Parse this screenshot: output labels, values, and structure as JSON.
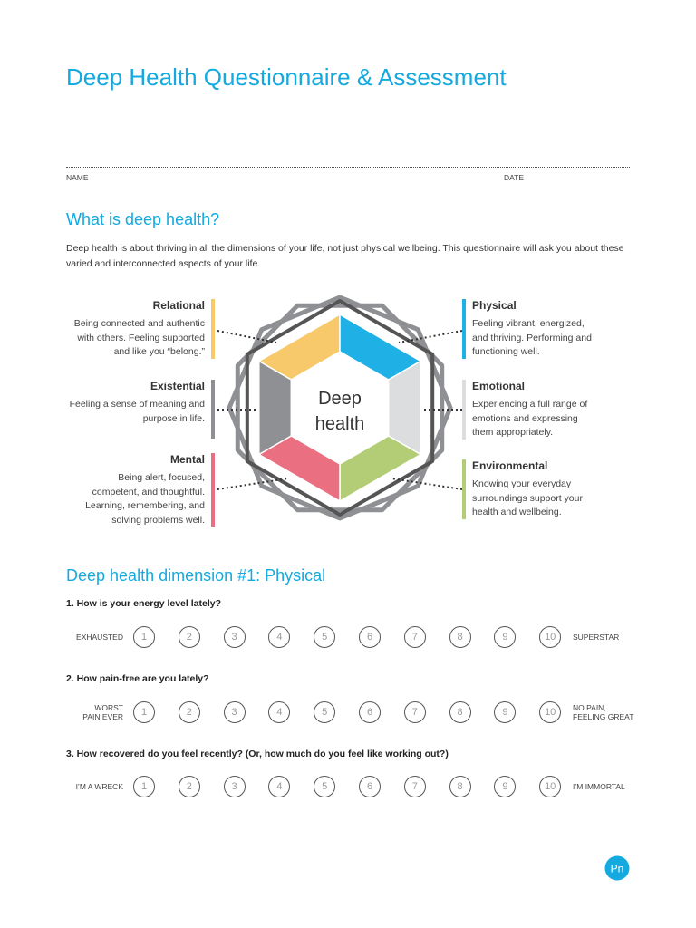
{
  "header": {
    "title": "Deep Health Questionnaire & Assessment"
  },
  "fields": {
    "name": "NAME",
    "date": "DATE"
  },
  "intro": {
    "heading": "What is deep health?",
    "text": "Deep health is about thriving in all the dimensions of your life, not just physical wellbeing. This questionnaire will ask you about these varied and interconnected aspects of your life."
  },
  "diagram": {
    "center": [
      "Deep",
      "health"
    ],
    "dimensions": [
      {
        "title": "Relational",
        "text": "Being connected and authentic with others. Feeling supported and like you “belong.”",
        "color": "#f7c96b"
      },
      {
        "title": "Existential",
        "text": "Feeling a sense of meaning and purpose in life.",
        "color": "#8e9093"
      },
      {
        "title": "Mental",
        "text": "Being alert, focused, competent, and thoughtful. Learning, remembering, and solving problems well.",
        "color": "#ea6f80"
      },
      {
        "title": "Physical",
        "text": "Feeling vibrant, energized, and thriving. Performing and functioning well.",
        "color": "#1fb1e6"
      },
      {
        "title": "Emotional",
        "text": "Experiencing a full range of emotions and expressing them appropriately.",
        "color": "#dcdddf"
      },
      {
        "title": "Environmental",
        "text": "Knowing your everyday surroundings support your health and wellbeing.",
        "color": "#b3cd76"
      }
    ]
  },
  "section": {
    "heading": "Deep health dimension #1: Physical",
    "scale": [
      1,
      2,
      3,
      4,
      5,
      6,
      7,
      8,
      9,
      10
    ],
    "questions": [
      {
        "question": "1. How is your energy level lately?",
        "low": [
          "EXHAUSTED"
        ],
        "high": [
          "SUPERSTAR"
        ]
      },
      {
        "question": "2. How pain-free are you lately?",
        "low": [
          "WORST",
          "PAIN EVER"
        ],
        "high": [
          "NO PAIN,",
          "FEELING GREAT"
        ]
      },
      {
        "question": "3. How recovered do you feel recently? (Or, how much do you feel like working out?)",
        "low": [
          "I’M A WRECK"
        ],
        "high": [
          "I’M IMMORTAL"
        ]
      }
    ]
  },
  "footer": {
    "logo": "Pn"
  }
}
